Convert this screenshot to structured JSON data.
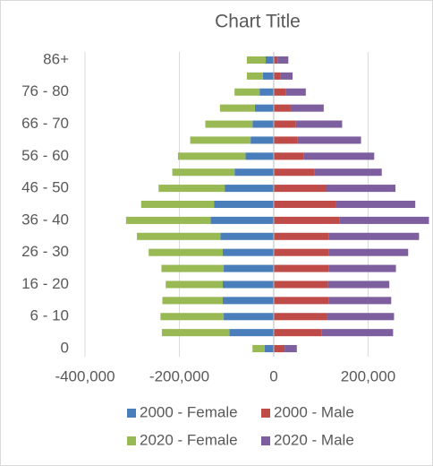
{
  "chart_data": {
    "type": "stacked-bar-horizontal",
    "title": "Chart Title",
    "categories": [
      "0",
      null,
      "6 - 10",
      null,
      "16 - 20",
      null,
      "26 - 30",
      null,
      "36 - 40",
      null,
      "46 - 50",
      null,
      "56 - 60",
      null,
      "66 - 70",
      null,
      "76 - 80",
      null,
      "86+"
    ],
    "series": [
      {
        "name": "2000 - Female",
        "color": "#4a7ebb",
        "values": [
          -19000,
          -94000,
          -106000,
          -108000,
          -108000,
          -106000,
          -108000,
          -113000,
          -134000,
          -126000,
          -104000,
          -83000,
          -60000,
          -49000,
          -45000,
          -40000,
          -30000,
          -23000,
          -17000
        ]
      },
      {
        "name": "2000 - Male",
        "color": "#be4b48",
        "values": [
          23000,
          102000,
          113000,
          117000,
          115000,
          117000,
          117000,
          117000,
          140000,
          132000,
          111000,
          87000,
          64000,
          51000,
          47000,
          36000,
          25000,
          15000,
          8000
        ]
      },
      {
        "name": "2020 - Female",
        "color": "#98b954",
        "values": [
          -26000,
          -143000,
          -134000,
          -128000,
          -121000,
          -132000,
          -157000,
          -177000,
          -179000,
          -155000,
          -140000,
          -132000,
          -143000,
          -128000,
          -100000,
          -74000,
          -53000,
          -34000,
          -40000
        ]
      },
      {
        "name": "2020 - Male",
        "color": "#7d5fa0",
        "values": [
          26000,
          151000,
          142000,
          132000,
          130000,
          142000,
          168000,
          191000,
          189000,
          168000,
          147000,
          142000,
          149000,
          134000,
          98000,
          70000,
          43000,
          25000,
          23000
        ]
      }
    ],
    "xlim": [
      -400000,
      330000
    ],
    "xticks": [
      {
        "value": -400000,
        "label": "-400,000"
      },
      {
        "value": -200000,
        "label": "-200,000"
      },
      0,
      {
        "value": 200000,
        "label": "200,000"
      }
    ],
    "grid": true
  }
}
